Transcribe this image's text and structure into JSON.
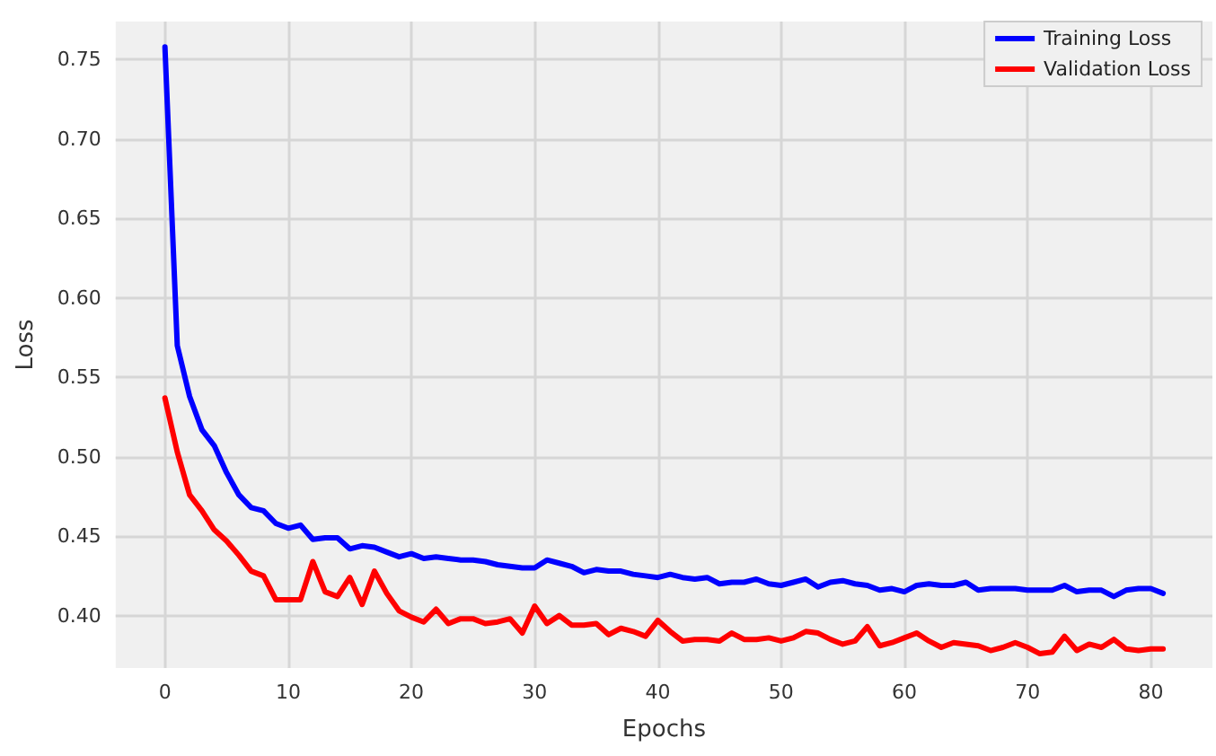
{
  "chart_data": {
    "type": "line",
    "xlabel": "Epochs",
    "ylabel": "Loss",
    "x": [
      0,
      1,
      2,
      3,
      4,
      5,
      6,
      7,
      8,
      9,
      10,
      11,
      12,
      13,
      14,
      15,
      16,
      17,
      18,
      19,
      20,
      21,
      22,
      23,
      24,
      25,
      26,
      27,
      28,
      29,
      30,
      31,
      32,
      33,
      34,
      35,
      36,
      37,
      38,
      39,
      40,
      41,
      42,
      43,
      44,
      45,
      46,
      47,
      48,
      49,
      50,
      51,
      52,
      53,
      54,
      55,
      56,
      57,
      58,
      59,
      60,
      61,
      62,
      63,
      64,
      65,
      66,
      67,
      68,
      69,
      70,
      71,
      72,
      73,
      74,
      75,
      76,
      77,
      78,
      79,
      80,
      81
    ],
    "series": [
      {
        "name": "Training Loss",
        "color": "#0000ff",
        "values": [
          0.758,
          0.57,
          0.538,
          0.517,
          0.507,
          0.49,
          0.476,
          0.468,
          0.466,
          0.458,
          0.455,
          0.457,
          0.448,
          0.449,
          0.449,
          0.442,
          0.444,
          0.443,
          0.44,
          0.437,
          0.439,
          0.436,
          0.437,
          0.436,
          0.435,
          0.435,
          0.434,
          0.432,
          0.431,
          0.43,
          0.43,
          0.435,
          0.433,
          0.431,
          0.427,
          0.429,
          0.428,
          0.428,
          0.426,
          0.425,
          0.424,
          0.426,
          0.424,
          0.423,
          0.424,
          0.42,
          0.421,
          0.421,
          0.423,
          0.42,
          0.419,
          0.421,
          0.423,
          0.418,
          0.421,
          0.422,
          0.42,
          0.419,
          0.416,
          0.417,
          0.415,
          0.419,
          0.42,
          0.419,
          0.419,
          0.421,
          0.416,
          0.417,
          0.417,
          0.417,
          0.416,
          0.416,
          0.416,
          0.419,
          0.415,
          0.416,
          0.416,
          0.412,
          0.416,
          0.417,
          0.417,
          0.414
        ]
      },
      {
        "name": "Validation Loss",
        "color": "#ff0000",
        "values": [
          0.537,
          0.503,
          0.476,
          0.466,
          0.454,
          0.447,
          0.438,
          0.428,
          0.425,
          0.41,
          0.41,
          0.41,
          0.434,
          0.415,
          0.412,
          0.424,
          0.407,
          0.428,
          0.414,
          0.403,
          0.399,
          0.396,
          0.404,
          0.395,
          0.398,
          0.398,
          0.395,
          0.396,
          0.398,
          0.389,
          0.406,
          0.395,
          0.4,
          0.394,
          0.394,
          0.395,
          0.388,
          0.392,
          0.39,
          0.387,
          0.397,
          0.39,
          0.384,
          0.385,
          0.385,
          0.384,
          0.389,
          0.385,
          0.385,
          0.386,
          0.384,
          0.386,
          0.39,
          0.389,
          0.385,
          0.382,
          0.384,
          0.393,
          0.381,
          0.383,
          0.386,
          0.389,
          0.384,
          0.38,
          0.383,
          0.382,
          0.381,
          0.378,
          0.38,
          0.383,
          0.38,
          0.376,
          0.377,
          0.387,
          0.378,
          0.382,
          0.38,
          0.385,
          0.379,
          0.378,
          0.379,
          0.379
        ]
      }
    ],
    "xlim": [
      -4,
      85
    ],
    "xticks": [
      0,
      10,
      20,
      30,
      40,
      50,
      60,
      70,
      80
    ],
    "ylim": [
      0.367,
      0.774
    ],
    "yticks": [
      {
        "value": 0.4,
        "label": "0.40"
      },
      {
        "value": 0.45,
        "label": "0.45"
      },
      {
        "value": 0.5,
        "label": "0.50"
      },
      {
        "value": 0.55,
        "label": "0.55"
      },
      {
        "value": 0.6,
        "label": "0.60"
      },
      {
        "value": 0.65,
        "label": "0.65"
      },
      {
        "value": 0.7,
        "label": "0.70"
      },
      {
        "value": 0.75,
        "label": "0.75"
      }
    ],
    "grid": true,
    "legend": "top right",
    "marker": "none",
    "line_style": "solid"
  }
}
